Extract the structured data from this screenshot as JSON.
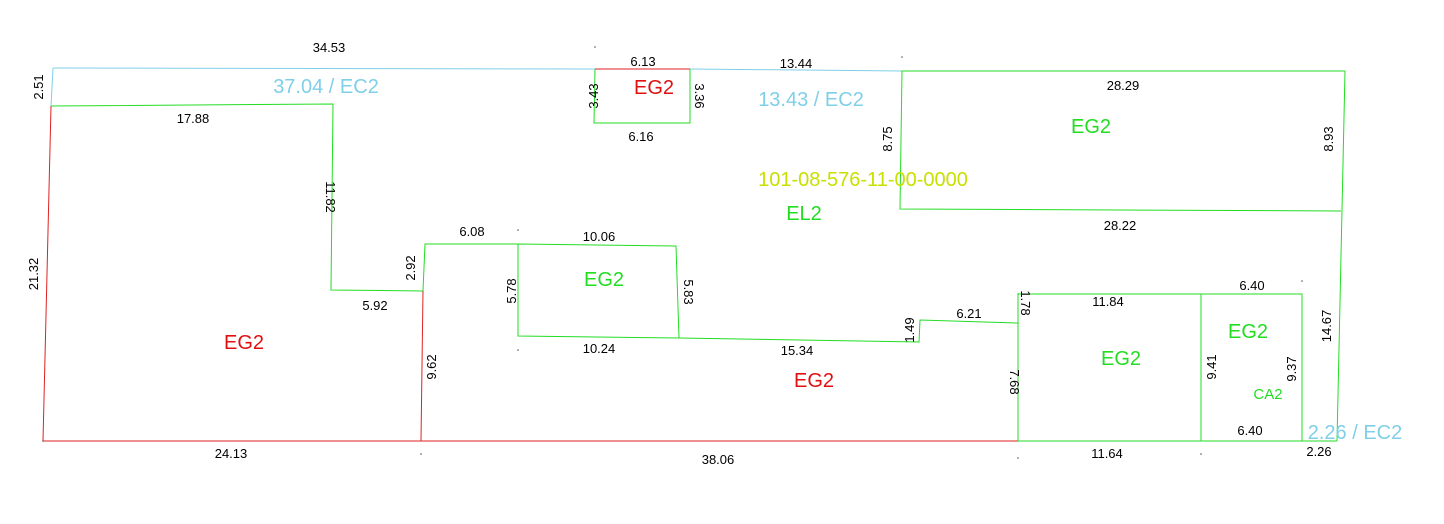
{
  "colors": {
    "green_line": "#22dd22",
    "red_line": "#dd2222",
    "blue_line": "#7fcfe8",
    "red_label": "#e01010",
    "green_label": "#22dd22",
    "blue_label": "#7fcfe8",
    "parcel_label": "#c8e000",
    "dim_text": "#000000"
  },
  "labels": {
    "parcel_id": "101-08-576-11-00-0000",
    "el2": "EL2",
    "eg2_left": "EG2",
    "eg2_top_small": "EG2",
    "eg2_top_right": "EG2",
    "eg2_middle_box": "EG2",
    "eg2_bottom_center": "EG2",
    "eg2_bottom_right": "EG2",
    "eg2_far_right": "EG2",
    "ca2": "CA2",
    "ec2_left": "37.04 / EC2",
    "ec2_center": "13.43 / EC2",
    "ec2_bottom_right": "2.26 / EC2"
  },
  "dimensions": {
    "top_3453": "34.53",
    "left_251": "2.51",
    "top_1788": "17.88",
    "left_2132": "21.32",
    "vert_1182": "11.82",
    "h_592": "5.92",
    "vert_292": "2.92",
    "vert_962": "9.62",
    "bottom_2413": "24.13",
    "h_608": "6.08",
    "top_613": "6.13",
    "vert_343": "3.43",
    "vert_336": "3.36",
    "h_616": "6.16",
    "top_1344": "13.44",
    "top_2829": "28.29",
    "vert_875": "8.75",
    "vert_893": "8.93",
    "h_2822": "28.22",
    "h_1006": "10.06",
    "vert_578": "5.78",
    "vert_583": "5.83",
    "h_1024": "10.24",
    "h_1534": "15.34",
    "vert_149": "1.49",
    "h_621": "6.21",
    "vert_178": "1.78",
    "h_1184": "11.84",
    "h_640_top": "6.40",
    "vert_1467": "14.67",
    "vert_768": "7.68",
    "vert_941": "9.41",
    "vert_937": "9.37",
    "h_640_bottom": "6.40",
    "bottom_3806": "38.06",
    "bottom_1164": "11.64",
    "bottom_226": "2.26"
  }
}
